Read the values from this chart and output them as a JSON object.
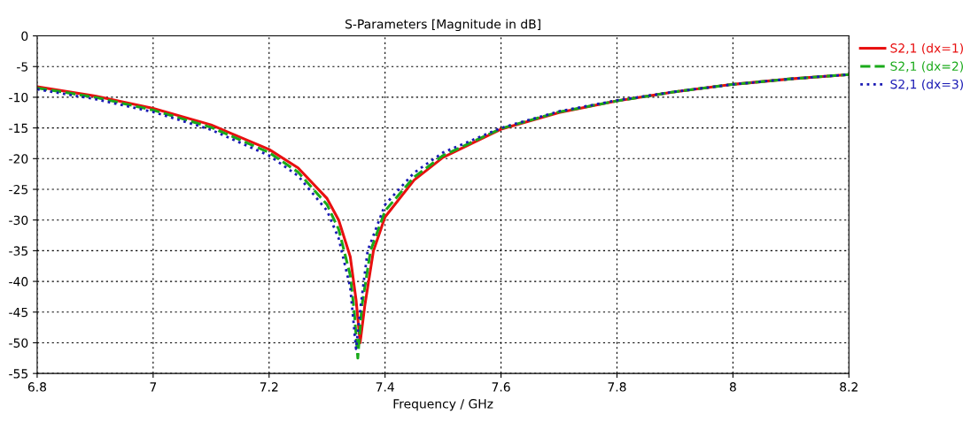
{
  "chart_data": {
    "type": "line",
    "title": "S-Parameters [Magnitude in dB]",
    "xlabel": "Frequency / GHz",
    "xlim": [
      6.8,
      8.2
    ],
    "xticks": [
      6.8,
      7,
      7.2,
      7.4,
      7.6,
      7.8,
      8,
      8.2
    ],
    "ylim": [
      -55,
      0
    ],
    "yticks": [
      -55,
      -50,
      -45,
      -40,
      -35,
      -30,
      -25,
      -20,
      -15,
      -10,
      -5,
      0
    ],
    "grid": true,
    "legend": "top right",
    "marker": "none",
    "series": [
      {
        "name": "S2,1 (dx=1)",
        "color": "#e81010",
        "line_style": "solid",
        "x": [
          6.8,
          6.9,
          7.0,
          7.1,
          7.2,
          7.25,
          7.3,
          7.32,
          7.34,
          7.35,
          7.357,
          7.365,
          7.38,
          7.4,
          7.45,
          7.5,
          7.6,
          7.7,
          7.8,
          7.9,
          8.0,
          8.1,
          8.2
        ],
        "values": [
          -8.3,
          -9.8,
          -11.8,
          -14.5,
          -18.5,
          -21.5,
          -26.5,
          -30,
          -36,
          -43,
          -50,
          -44,
          -35,
          -29.5,
          -23.5,
          -19.8,
          -15.2,
          -12.5,
          -10.6,
          -9.1,
          -7.9,
          -7,
          -6.3
        ]
      },
      {
        "name": "S2,1 (dx=2)",
        "color": "#1aaa1a",
        "line_style": "dashed",
        "x": [
          6.8,
          6.9,
          7.0,
          7.1,
          7.2,
          7.25,
          7.3,
          7.32,
          7.34,
          7.347,
          7.353,
          7.36,
          7.375,
          7.4,
          7.45,
          7.5,
          7.6,
          7.7,
          7.8,
          7.9,
          8.0,
          8.1,
          8.2
        ],
        "values": [
          -8.5,
          -10,
          -12.1,
          -14.9,
          -19,
          -22.2,
          -27.5,
          -31.5,
          -39,
          -45,
          -52.5,
          -44,
          -35,
          -28.5,
          -23,
          -19.5,
          -15.1,
          -12.4,
          -10.6,
          -9.1,
          -7.9,
          -7,
          -6.3
        ]
      },
      {
        "name": "S2,1 (dx=3)",
        "color": "#1a1ab4",
        "line_style": "dotted",
        "x": [
          6.8,
          6.9,
          7.0,
          7.1,
          7.2,
          7.25,
          7.3,
          7.32,
          7.34,
          7.345,
          7.35,
          7.358,
          7.37,
          7.4,
          7.45,
          7.5,
          7.6,
          7.7,
          7.8,
          7.9,
          8.0,
          8.1,
          8.2
        ],
        "values": [
          -8.7,
          -10.3,
          -12.4,
          -15.3,
          -19.5,
          -22.8,
          -28.5,
          -33,
          -41,
          -46,
          -51,
          -44,
          -35,
          -27.5,
          -22.3,
          -19,
          -15,
          -12.3,
          -10.5,
          -9.1,
          -7.9,
          -7,
          -6.3
        ]
      }
    ]
  }
}
